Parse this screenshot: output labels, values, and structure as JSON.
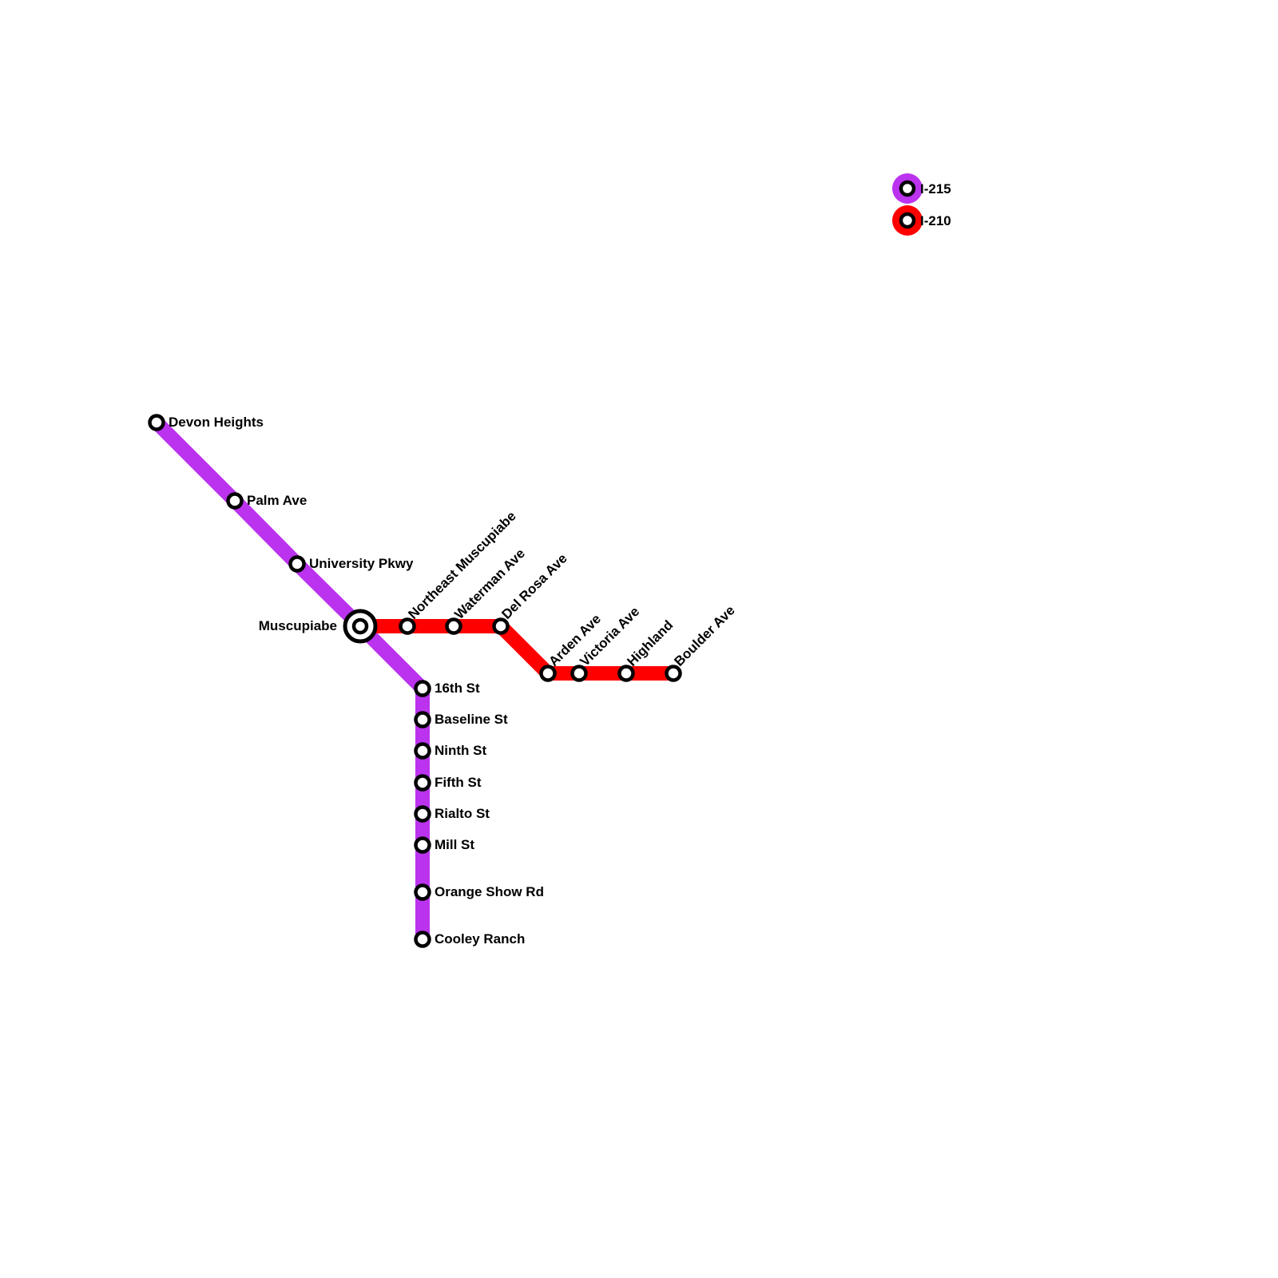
{
  "lines": [
    {
      "name": "I-215",
      "color": "#bb33ee",
      "stations": [
        "Devon Heights",
        "Palm Ave",
        "University Pkwy",
        "Muscupiabe",
        "16th St",
        "Baseline St",
        "Ninth St",
        "Fifth St",
        "Rialto St",
        "Mill St",
        "Orange Show Rd",
        "Cooley Ranch"
      ]
    },
    {
      "name": "I-210",
      "color": "#ff0000",
      "stations": [
        "Muscupiabe",
        "Northeast Muscupiabe",
        "Waterman Ave",
        "Del Rosa Ave",
        "Arden Ave",
        "Victoria Ave",
        "Highland",
        "Boulder Ave"
      ]
    }
  ],
  "interchange": "Muscupiabe",
  "legend": [
    {
      "label": "I-215",
      "color": "#bb33ee"
    },
    {
      "label": "I-210",
      "color": "#ff0000"
    }
  ]
}
